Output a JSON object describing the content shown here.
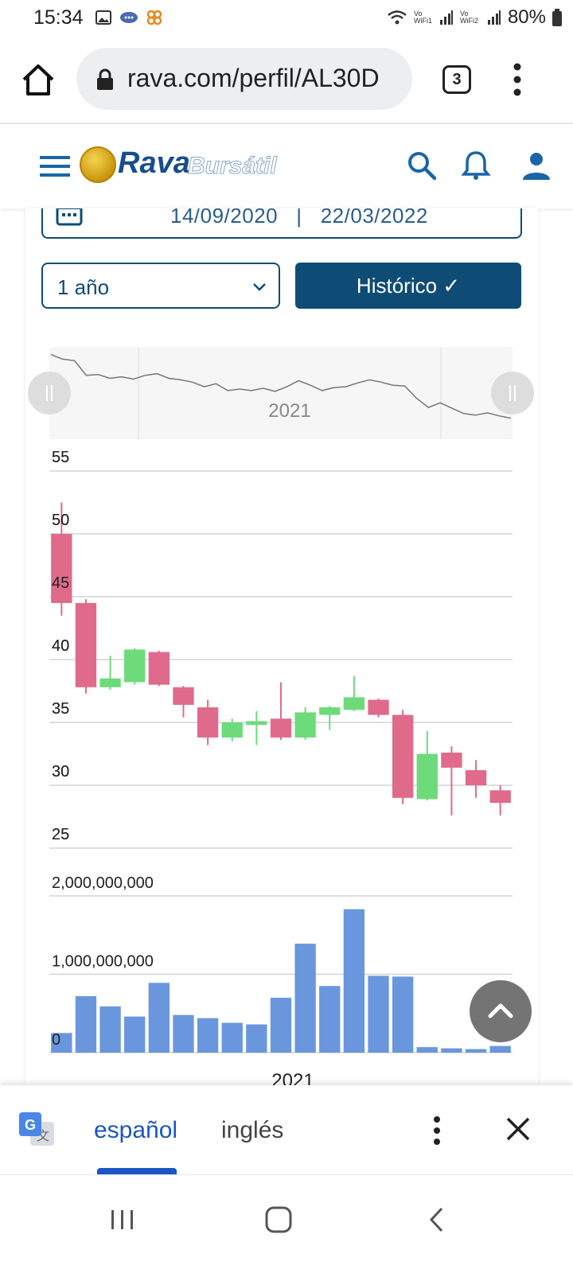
{
  "status_bar": {
    "time": "15:34",
    "battery": "80%",
    "wifi1_label": "Vo WiFi1",
    "wifi2_label": "Vo WiFi2"
  },
  "browser": {
    "url": "rava.com/perfil/AL30D",
    "tab_count": "3"
  },
  "site": {
    "logo_primary": "Rava",
    "logo_secondary": "Bursátil",
    "brand_color": "#0f4c75"
  },
  "controls": {
    "date_range": "14/09/2020   |   22/03/2022",
    "period_selected": "1 año",
    "historic_button": "Histórico ✓"
  },
  "navigator": {
    "year_label": "2021"
  },
  "chart_data": {
    "type": "candlestick",
    "price_axis": {
      "ticks": [
        "55",
        "50",
        "45",
        "40",
        "35",
        "30",
        "25"
      ],
      "ylim": [
        25,
        55
      ]
    },
    "volume_axis": {
      "ticks": [
        "2,000,000,000",
        "1,000,000,000",
        "0"
      ],
      "ylim": [
        0,
        2000000000
      ]
    },
    "x_label": "2021",
    "up_color": "#6ddb7a",
    "down_color": "#e06a8b",
    "volume_color": "#6a96de",
    "candles": [
      {
        "open": 50.0,
        "close": 44.5,
        "high": 52.5,
        "low": 43.5
      },
      {
        "open": 44.5,
        "close": 37.8,
        "high": 44.8,
        "low": 37.3
      },
      {
        "open": 37.8,
        "close": 38.5,
        "high": 40.3,
        "low": 37.6
      },
      {
        "open": 38.2,
        "close": 40.8,
        "high": 40.9,
        "low": 38.0
      },
      {
        "open": 40.6,
        "close": 38.0,
        "high": 40.7,
        "low": 37.9
      },
      {
        "open": 37.8,
        "close": 36.4,
        "high": 37.9,
        "low": 35.4
      },
      {
        "open": 36.2,
        "close": 33.8,
        "high": 36.8,
        "low": 33.2
      },
      {
        "open": 33.8,
        "close": 35.0,
        "high": 35.3,
        "low": 33.5
      },
      {
        "open": 34.8,
        "close": 35.1,
        "high": 35.9,
        "low": 33.2
      },
      {
        "open": 35.3,
        "close": 33.8,
        "high": 38.2,
        "low": 33.6
      },
      {
        "open": 33.8,
        "close": 35.8,
        "high": 36.2,
        "low": 33.6
      },
      {
        "open": 35.6,
        "close": 36.2,
        "high": 36.3,
        "low": 34.4
      },
      {
        "open": 36.0,
        "close": 37.0,
        "high": 38.7,
        "low": 35.9
      },
      {
        "open": 36.8,
        "close": 35.6,
        "high": 36.9,
        "low": 35.4
      },
      {
        "open": 35.6,
        "close": 29.0,
        "high": 36.0,
        "low": 28.5
      },
      {
        "open": 28.9,
        "close": 32.5,
        "high": 34.3,
        "low": 28.8
      },
      {
        "open": 32.6,
        "close": 31.4,
        "high": 33.1,
        "low": 27.6
      },
      {
        "open": 31.2,
        "close": 30.0,
        "high": 32.0,
        "low": 29.0
      },
      {
        "open": 29.6,
        "close": 28.6,
        "high": 30.0,
        "low": 27.6
      }
    ],
    "volumes": [
      250000000,
      720000000,
      590000000,
      460000000,
      890000000,
      480000000,
      440000000,
      380000000,
      360000000,
      700000000,
      1390000000,
      850000000,
      1830000000,
      980000000,
      970000000,
      70000000,
      55000000,
      45000000,
      85000000
    ],
    "navigator_series": [
      50,
      48.8,
      48.4,
      44.6,
      44.8,
      43.8,
      44.2,
      43.6,
      44.6,
      45.0,
      43.8,
      43.4,
      42.8,
      41.6,
      42.4,
      40.6,
      41.0,
      40.6,
      41.2,
      40.4,
      41.6,
      43.2,
      42.0,
      40.6,
      41.4,
      41.6,
      42.6,
      43.4,
      42.8,
      42.0,
      41.8,
      38.6,
      36.2,
      37.4,
      36.0,
      34.6,
      34.2,
      34.8,
      34.0,
      33.4
    ]
  },
  "translate_bar": {
    "lang_source": "español",
    "lang_target": "inglés"
  }
}
